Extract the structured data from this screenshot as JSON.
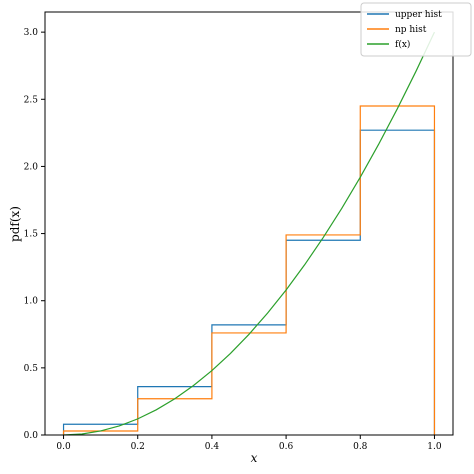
{
  "chart_data": {
    "type": "line",
    "xlabel": "x",
    "ylabel": "pdf(x)",
    "xlim": [
      -0.05,
      1.05
    ],
    "ylim": [
      0,
      3.15
    ],
    "x_ticks": [
      0.0,
      0.2,
      0.4,
      0.6,
      0.8,
      1.0
    ],
    "y_ticks": [
      0.0,
      0.5,
      1.0,
      1.5,
      2.0,
      2.5,
      3.0
    ],
    "x_tick_labels": [
      "0.0",
      "0.2",
      "0.4",
      "0.6",
      "0.8",
      "1.0"
    ],
    "y_tick_labels": [
      "0.0",
      "0.5",
      "1.0",
      "1.5",
      "2.0",
      "2.5",
      "3.0"
    ],
    "grid": false,
    "legend_position": "top-right",
    "series": [
      {
        "name": "upper hist",
        "kind": "step-histogram",
        "color": "#1f77b4",
        "bin_edges": [
          0.0,
          0.2,
          0.4,
          0.6,
          0.8,
          1.0
        ],
        "values": [
          0.08,
          0.36,
          0.82,
          1.45,
          2.27
        ]
      },
      {
        "name": "np hist",
        "kind": "step-histogram",
        "color": "#ff7f0e",
        "bin_edges": [
          0.0,
          0.2,
          0.4,
          0.6,
          0.8,
          1.0
        ],
        "values": [
          0.03,
          0.27,
          0.76,
          1.49,
          2.45
        ]
      },
      {
        "name": "f(x)",
        "kind": "curve",
        "color": "#2ca02c",
        "x": [
          0.0,
          0.05,
          0.1,
          0.15,
          0.2,
          0.25,
          0.3,
          0.35,
          0.4,
          0.45,
          0.5,
          0.55,
          0.6,
          0.65,
          0.7,
          0.75,
          0.8,
          0.85,
          0.9,
          0.95,
          1.0
        ],
        "y": [
          0.0,
          0.0075,
          0.03,
          0.0675,
          0.12,
          0.1875,
          0.27,
          0.3675,
          0.48,
          0.6075,
          0.75,
          0.9075,
          1.08,
          1.2675,
          1.47,
          1.6875,
          1.92,
          2.1675,
          2.43,
          2.7075,
          3.0
        ]
      }
    ]
  }
}
